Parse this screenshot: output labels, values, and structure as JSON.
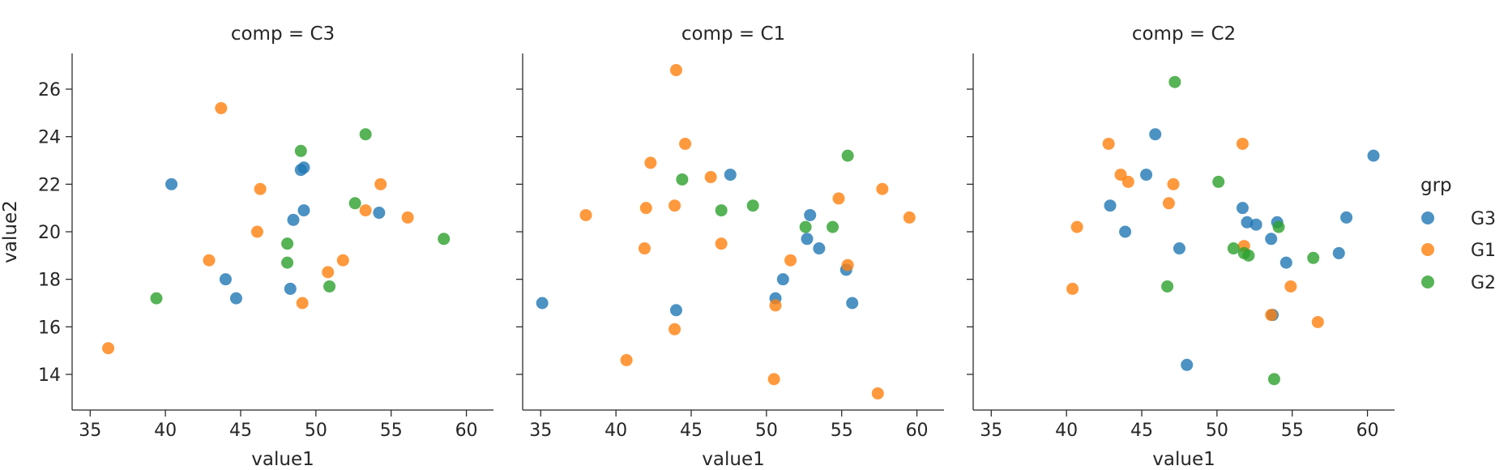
{
  "chart_data": {
    "type": "scatter",
    "facet_variable": "comp",
    "xlabel": "value1",
    "ylabel": "value2",
    "xlim": [
      33.8,
      61.8
    ],
    "ylim": [
      12.5,
      27.5
    ],
    "xticks": [
      35,
      40,
      45,
      50,
      55,
      60
    ],
    "yticks": [
      14,
      16,
      18,
      20,
      22,
      24,
      26
    ],
    "legend": {
      "title": "grp",
      "placement": "right",
      "entries": [
        "G3",
        "G1",
        "G2"
      ]
    },
    "colors": {
      "G3": "#1f77b4",
      "G1": "#ff7f0e",
      "G2": "#2ca02c"
    },
    "grid": false,
    "panels": [
      {
        "title": "comp = C3",
        "series": [
          {
            "name": "G3",
            "points": [
              [
                40.4,
                22.0
              ],
              [
                49.0,
                22.6
              ],
              [
                49.2,
                22.7
              ],
              [
                49.2,
                20.9
              ],
              [
                48.5,
                20.5
              ],
              [
                54.2,
                20.8
              ],
              [
                44.0,
                18.0
              ],
              [
                44.7,
                17.2
              ],
              [
                48.3,
                17.6
              ]
            ]
          },
          {
            "name": "G1",
            "points": [
              [
                43.7,
                25.2
              ],
              [
                46.3,
                21.8
              ],
              [
                54.3,
                22.0
              ],
              [
                46.1,
                20.0
              ],
              [
                53.3,
                20.9
              ],
              [
                56.1,
                20.6
              ],
              [
                42.9,
                18.8
              ],
              [
                50.8,
                18.3
              ],
              [
                51.8,
                18.8
              ],
              [
                49.1,
                17.0
              ],
              [
                36.2,
                15.1
              ]
            ]
          },
          {
            "name": "G2",
            "points": [
              [
                49.0,
                23.4
              ],
              [
                53.3,
                24.1
              ],
              [
                52.6,
                21.2
              ],
              [
                48.1,
                19.5
              ],
              [
                48.1,
                18.7
              ],
              [
                58.5,
                19.7
              ],
              [
                39.4,
                17.2
              ],
              [
                50.9,
                17.7
              ]
            ]
          }
        ]
      },
      {
        "title": "comp = C1",
        "series": [
          {
            "name": "G3",
            "points": [
              [
                47.6,
                22.4
              ],
              [
                52.9,
                20.7
              ],
              [
                52.7,
                19.7
              ],
              [
                53.5,
                19.3
              ],
              [
                51.1,
                18.0
              ],
              [
                55.3,
                18.4
              ],
              [
                50.6,
                17.2
              ],
              [
                55.7,
                17.0
              ],
              [
                44.0,
                16.7
              ],
              [
                35.1,
                17.0
              ]
            ]
          },
          {
            "name": "G1",
            "points": [
              [
                44.0,
                26.8
              ],
              [
                44.6,
                23.7
              ],
              [
                42.3,
                22.9
              ],
              [
                46.3,
                22.3
              ],
              [
                57.7,
                21.8
              ],
              [
                38.0,
                20.7
              ],
              [
                42.0,
                21.0
              ],
              [
                43.9,
                21.1
              ],
              [
                54.8,
                21.4
              ],
              [
                59.5,
                20.6
              ],
              [
                47.0,
                19.5
              ],
              [
                41.9,
                19.3
              ],
              [
                51.6,
                18.8
              ],
              [
                55.4,
                18.6
              ],
              [
                50.6,
                16.9
              ],
              [
                43.9,
                15.9
              ],
              [
                40.7,
                14.6
              ],
              [
                50.5,
                13.8
              ],
              [
                57.4,
                13.2
              ]
            ]
          },
          {
            "name": "G2",
            "points": [
              [
                44.4,
                22.2
              ],
              [
                55.4,
                23.2
              ],
              [
                47.0,
                20.9
              ],
              [
                49.1,
                21.1
              ],
              [
                52.6,
                20.2
              ],
              [
                54.4,
                20.2
              ]
            ]
          }
        ]
      },
      {
        "title": "comp = C2",
        "series": [
          {
            "name": "G3",
            "points": [
              [
                45.9,
                24.1
              ],
              [
                60.4,
                23.2
              ],
              [
                45.3,
                22.4
              ],
              [
                42.9,
                21.1
              ],
              [
                43.9,
                20.0
              ],
              [
                51.7,
                21.0
              ],
              [
                52.0,
                20.4
              ],
              [
                52.6,
                20.3
              ],
              [
                54.0,
                20.4
              ],
              [
                58.6,
                20.6
              ],
              [
                53.6,
                19.7
              ],
              [
                47.5,
                19.3
              ],
              [
                54.6,
                18.7
              ],
              [
                58.1,
                19.1
              ],
              [
                53.7,
                16.5
              ],
              [
                48.0,
                14.4
              ]
            ]
          },
          {
            "name": "G1",
            "points": [
              [
                42.8,
                23.7
              ],
              [
                51.7,
                23.7
              ],
              [
                43.6,
                22.4
              ],
              [
                44.1,
                22.1
              ],
              [
                47.1,
                22.0
              ],
              [
                46.8,
                21.2
              ],
              [
                40.7,
                20.2
              ],
              [
                51.8,
                19.4
              ],
              [
                40.4,
                17.6
              ],
              [
                54.9,
                17.7
              ],
              [
                53.6,
                16.5
              ],
              [
                56.7,
                16.2
              ]
            ]
          },
          {
            "name": "G2",
            "points": [
              [
                47.2,
                26.3
              ],
              [
                50.1,
                22.1
              ],
              [
                51.1,
                19.3
              ],
              [
                51.8,
                19.1
              ],
              [
                52.1,
                19.0
              ],
              [
                54.1,
                20.2
              ],
              [
                56.4,
                18.9
              ],
              [
                46.7,
                17.7
              ],
              [
                53.8,
                13.8
              ]
            ]
          }
        ]
      }
    ]
  }
}
